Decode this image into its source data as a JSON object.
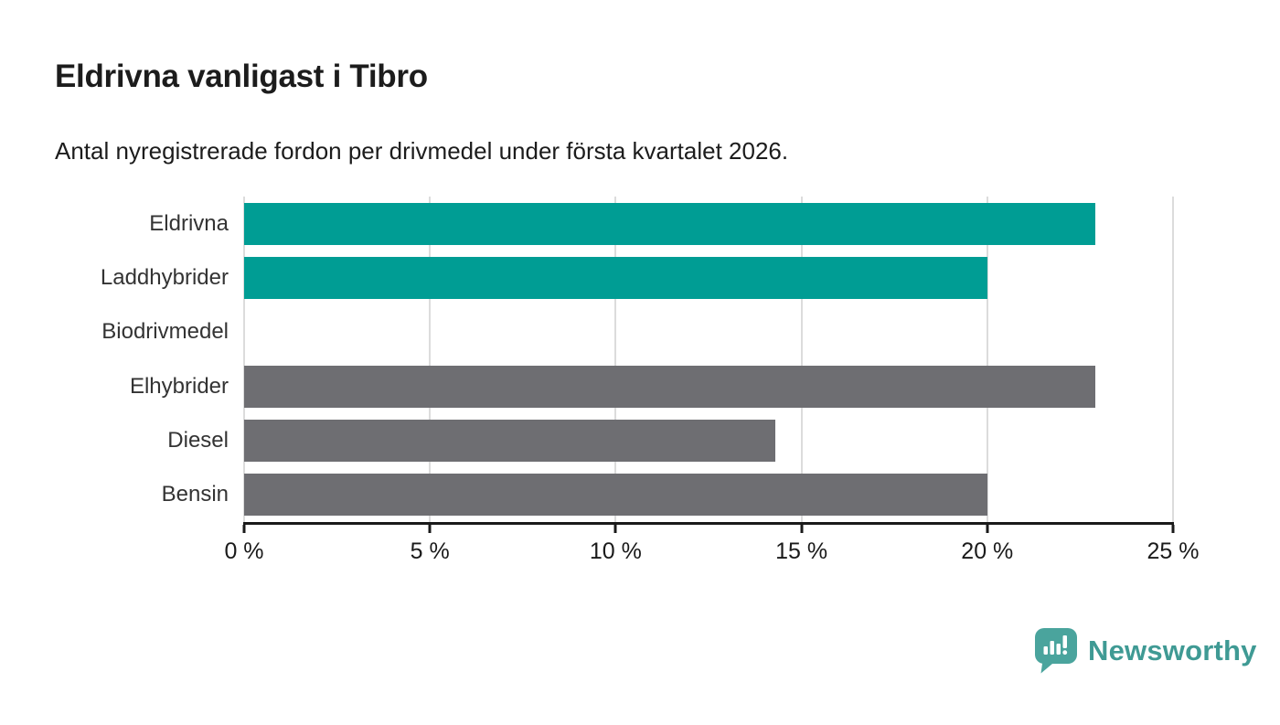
{
  "header": {
    "title": "Eldrivna vanligast i Tibro",
    "subtitle": "Antal nyregistrerade fordon per drivmedel under första kvartalet 2026."
  },
  "chart_data": {
    "type": "bar",
    "orientation": "horizontal",
    "title": "Eldrivna vanligast i Tibro",
    "subtitle": "Antal nyregistrerade fordon per drivmedel under första kvartalet 2026.",
    "categories": [
      "Eldrivna",
      "Laddhybrider",
      "Biodrivmedel",
      "Elhybrider",
      "Diesel",
      "Bensin"
    ],
    "values": [
      22.9,
      20,
      0,
      22.9,
      14.3,
      20
    ],
    "unit": "%",
    "xlim": [
      0,
      25
    ],
    "x_tick_values": [
      0,
      5,
      10,
      15,
      20,
      25
    ],
    "x_tick_labels": [
      "0 %",
      "5 %",
      "10 %",
      "15 %",
      "20 %",
      "25 %"
    ],
    "bar_colors": [
      "#009d94",
      "#009d94",
      "#6e6e72",
      "#6e6e72",
      "#6e6e72",
      "#6e6e72"
    ],
    "grid": true,
    "legend": false
  },
  "colors": {
    "highlight": "#009d94",
    "neutral": "#6e6e72",
    "gridline": "#dcdcdc",
    "axis": "#1a1a1a",
    "label_text": "#333333",
    "brand_text": "#3f9a94",
    "brand_mark": "#4aa49d"
  },
  "branding": {
    "name": "Newsworthy",
    "logo_icon": "bar-chart-speech-bubble"
  }
}
